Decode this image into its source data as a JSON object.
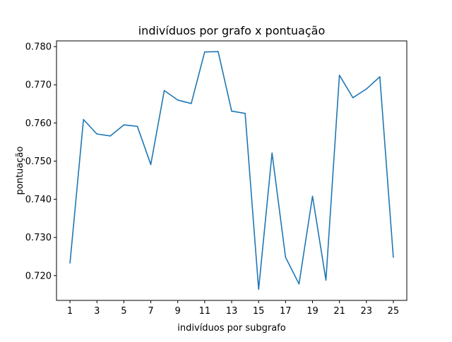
{
  "chart_data": {
    "type": "line",
    "title": "indivíduos por grafo x pontuação",
    "xlabel": "indivíduos por subgrafo",
    "ylabel": "pontuação",
    "x_ticks": [
      "1",
      "3",
      "5",
      "7",
      "9",
      "11",
      "13",
      "15",
      "17",
      "19",
      "21",
      "23",
      "25"
    ],
    "y_ticks": [
      "0.720",
      "0.730",
      "0.740",
      "0.750",
      "0.760",
      "0.770",
      "0.780"
    ],
    "xlim": [
      0,
      26
    ],
    "ylim": [
      0.7135,
      0.7815
    ],
    "grid": false,
    "series": [
      {
        "color": "#1f77b4",
        "x": [
          1,
          2,
          3,
          4,
          5,
          6,
          7,
          8,
          9,
          10,
          11,
          12,
          13,
          14,
          15,
          16,
          17,
          18,
          19,
          20,
          21,
          22,
          23,
          24,
          25
        ],
        "y": [
          0.7233,
          0.7609,
          0.7571,
          0.7566,
          0.7595,
          0.7591,
          0.7491,
          0.7685,
          0.766,
          0.7651,
          0.7786,
          0.7787,
          0.7631,
          0.7625,
          0.7164,
          0.7521,
          0.7248,
          0.7178,
          0.7408,
          0.7188,
          0.7725,
          0.7666,
          0.7689,
          0.7721,
          0.7248
        ]
      }
    ]
  }
}
